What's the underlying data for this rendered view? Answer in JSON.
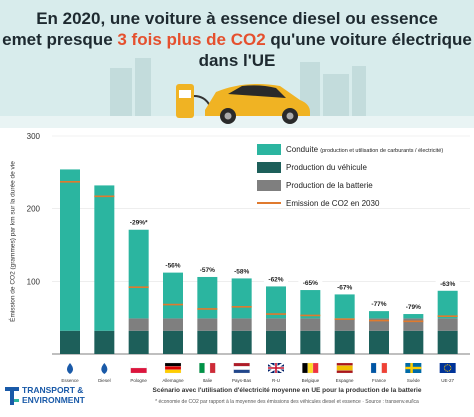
{
  "header": {
    "title_line1": "En 2020, une voiture à essence diesel ou essence",
    "title_line2_pre": "emet presque ",
    "title_line2_highlight": "3 fois plus de CO2",
    "title_line2_post": " qu'une voiture électrique dans l'UE"
  },
  "legend": {
    "drive": "Conduite",
    "drive_note": "(production et utilisation de carburants / électricité)",
    "vehicle": "Production du véhicule",
    "battery": "Production de la batterie",
    "emission2030": "Emission de CO2 en 2030"
  },
  "colors": {
    "drive": "#2bb5a0",
    "vehicle": "#1d5f5a",
    "battery": "#7f7f7f",
    "line2030": "#e07a2e",
    "header_bg": "#d8ecec",
    "highlight": "#e5502e"
  },
  "chart_data": {
    "type": "bar",
    "stacked": true,
    "ylabel": "Émission de CO2 (grammes) par km sur la durée de vie",
    "ylim": [
      0,
      300
    ],
    "yticks": [
      100,
      200,
      300
    ],
    "categories": [
      "Essence",
      "Diesel",
      "Pologne",
      "Allemagne",
      "Italie",
      "Pays-Bas",
      "R-U",
      "Belgique",
      "Espagne",
      "France",
      "Suède",
      "UE-27"
    ],
    "flags": [
      "fuel-drop",
      "fuel-drop",
      "pl",
      "de",
      "it",
      "nl",
      "uk",
      "be",
      "es",
      "fr",
      "se",
      "eu"
    ],
    "series": [
      {
        "name": "Production du véhicule",
        "values": [
          32,
          32,
          32,
          32,
          32,
          32,
          32,
          32,
          32,
          32,
          32,
          32
        ]
      },
      {
        "name": "Production de la batterie",
        "values": [
          0,
          0,
          17,
          17,
          17,
          17,
          17,
          17,
          17,
          17,
          17,
          17
        ]
      },
      {
        "name": "Conduite",
        "values": [
          222,
          200,
          122,
          63,
          57,
          55,
          44,
          39,
          33,
          10,
          6,
          38
        ]
      }
    ],
    "emission_2030": [
      237,
      217,
      92,
      68,
      62,
      65,
      55,
      53,
      48,
      46,
      45,
      52
    ],
    "bar_labels": [
      "",
      "",
      "-29%*",
      "-56%",
      "-57%",
      "-58%",
      "-62%",
      "-65%",
      "-67%",
      "-77%",
      "-79%",
      "-63%"
    ]
  },
  "footer": {
    "logo_line1": "TRANSPORT &",
    "logo_line2": "ENVIRONMENT",
    "subtitle": "Scénario avec l'utilisation d'électricité moyenne en UE pour la production de la batterie",
    "footnote": "* économie de CO2 par rapport à la moyenne des émissions des véhicules diesel et essence · Source : transenv.eu/lca"
  }
}
